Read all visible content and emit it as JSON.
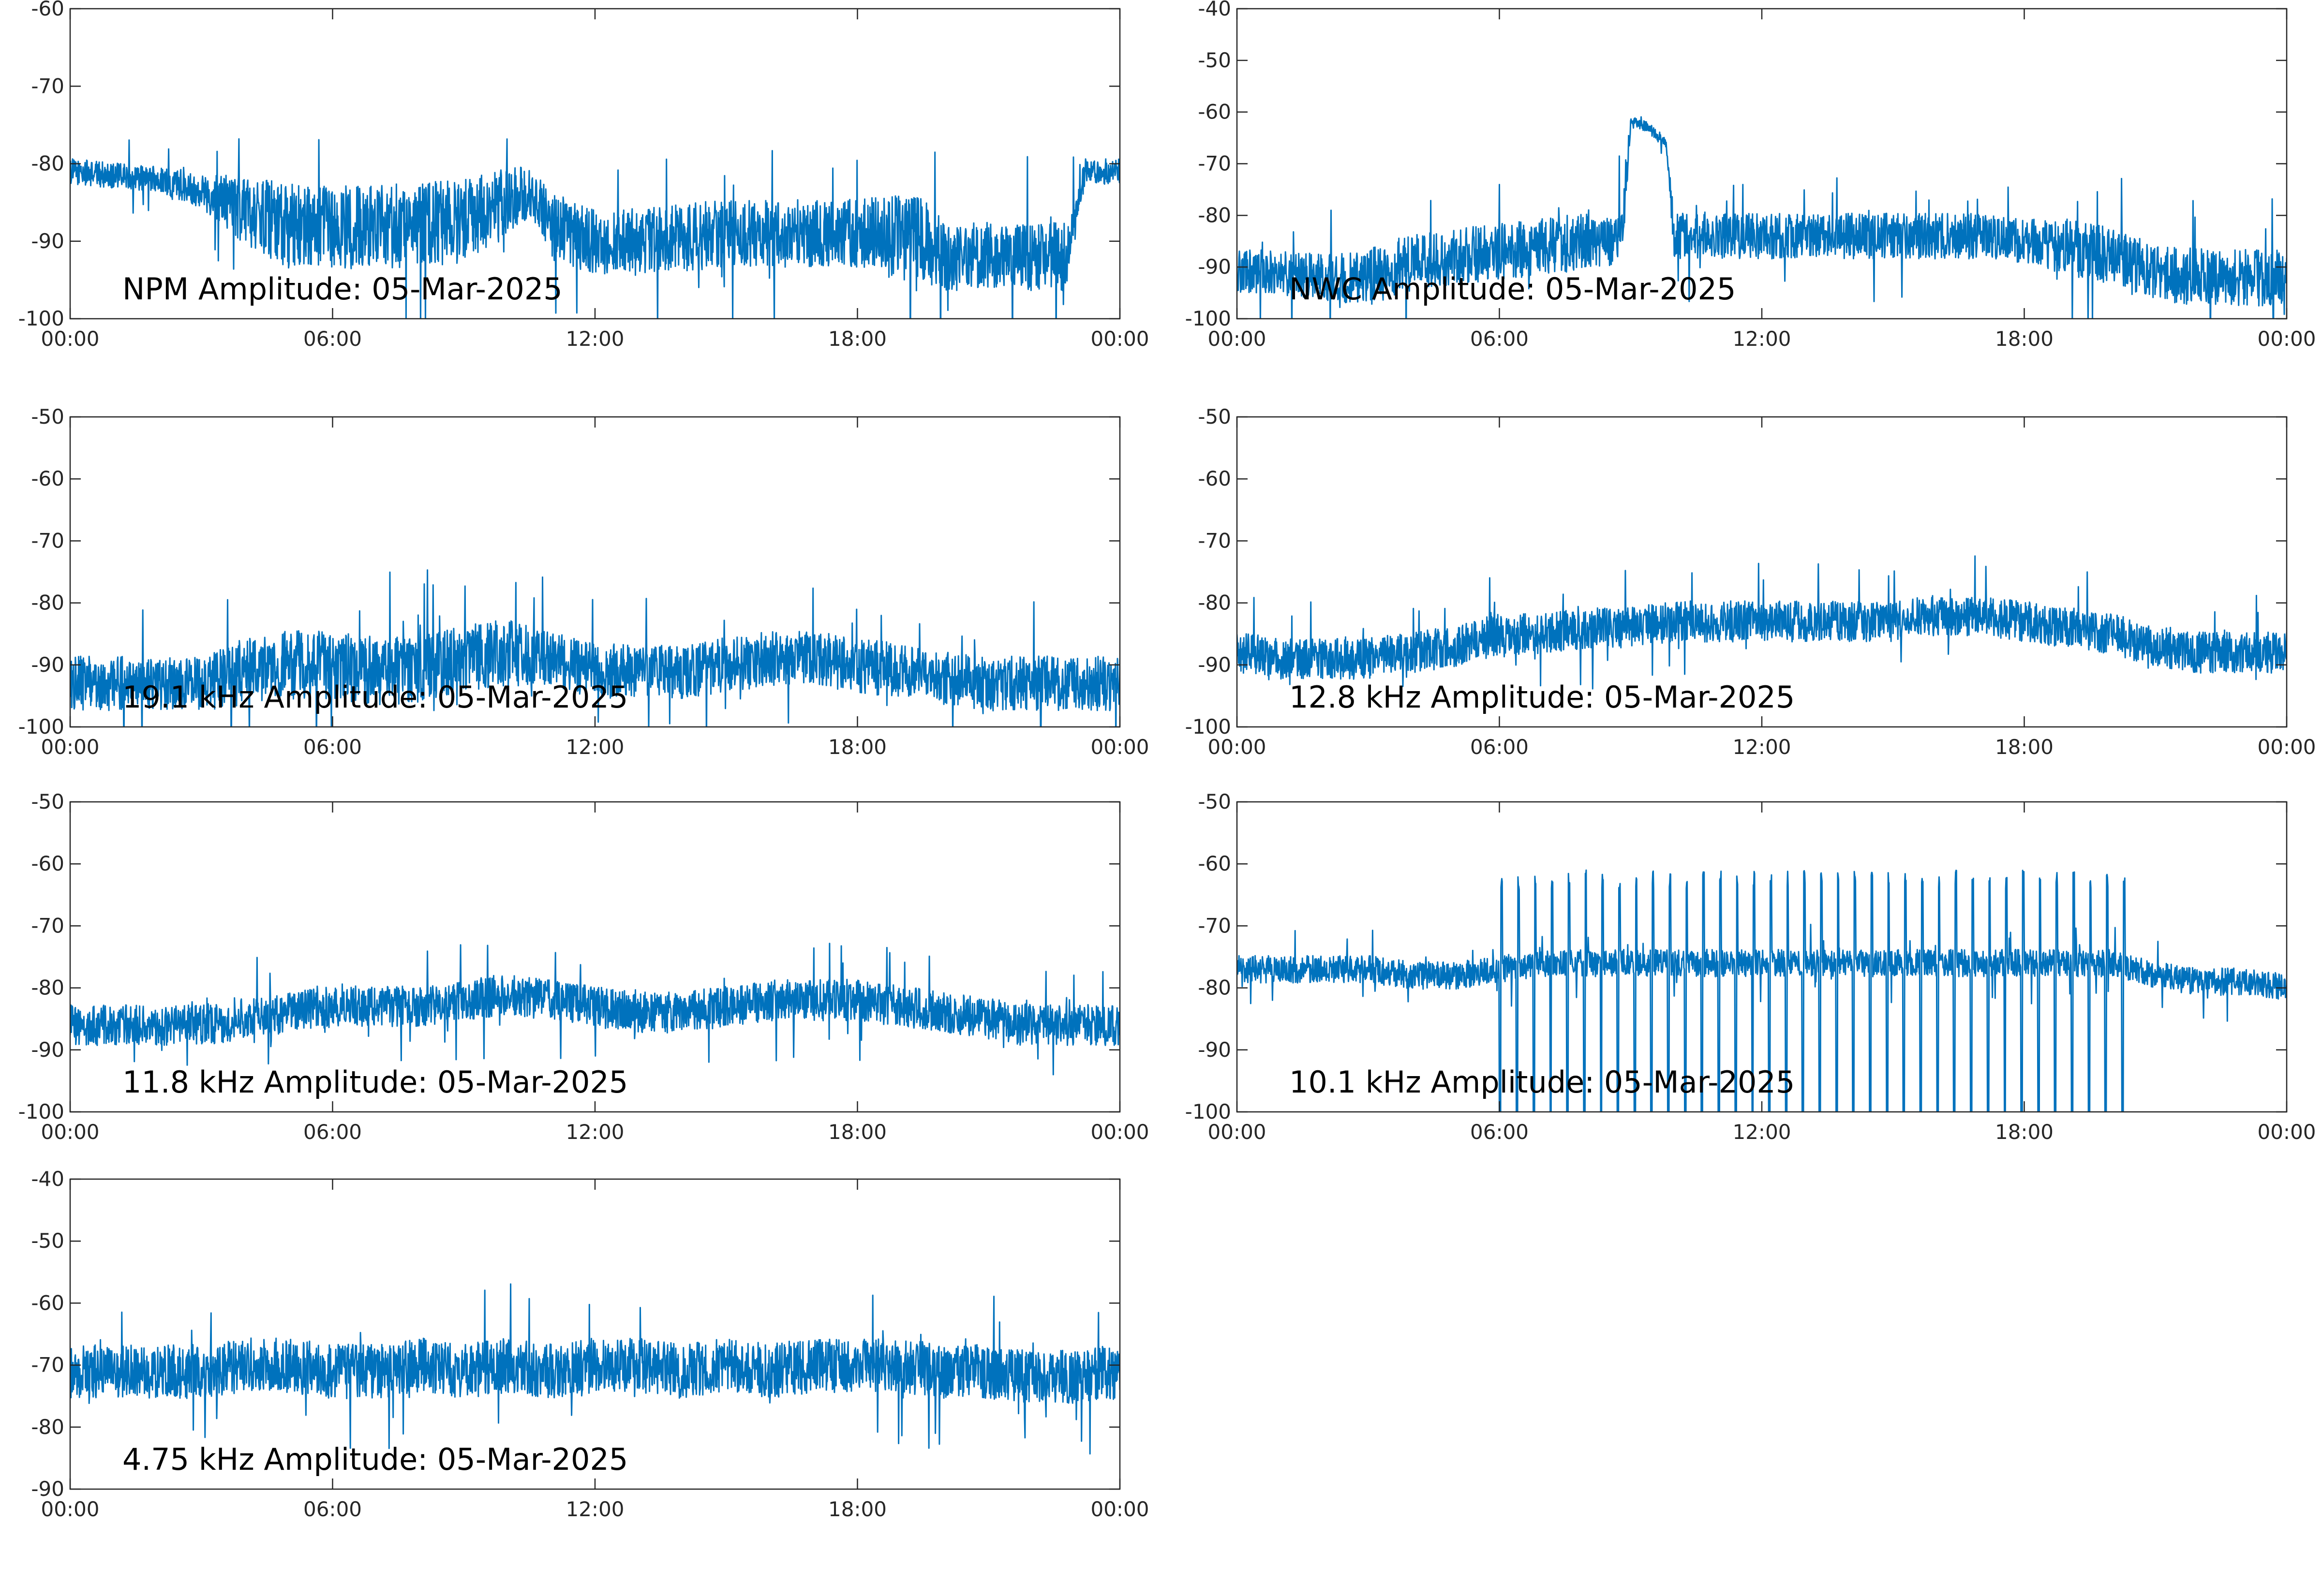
{
  "colors": {
    "line": "#0072bd",
    "axes": "#262626",
    "background": "#ffffff"
  },
  "chart_data": [
    {
      "type": "line",
      "title": "NPM Amplitude: 05-Mar-2025",
      "ylim": [
        -100,
        -60
      ],
      "yticks": [
        "-60",
        "-70",
        "-80",
        "-90",
        "-100"
      ],
      "xticks": [
        "00:00",
        "06:00",
        "12:00",
        "18:00",
        "00:00"
      ],
      "x_hours": [
        0,
        1,
        2,
        3,
        4,
        5,
        6,
        7,
        8,
        9,
        10,
        10.5,
        11,
        12,
        13,
        14,
        15,
        16,
        17,
        18,
        19,
        19.5,
        20,
        21,
        22,
        22.8,
        23.2,
        24
      ],
      "y": [
        -81,
        -81.5,
        -82,
        -83.5,
        -86,
        -88,
        -88.5,
        -88,
        -88,
        -87.5,
        -85,
        -83.5,
        -88,
        -90,
        -90,
        -89.5,
        -89,
        -89,
        -89,
        -89,
        -89.5,
        -90,
        -92,
        -92,
        -92,
        -92,
        -81,
        -81
      ],
      "spread": [
        1.5,
        1.5,
        1.5,
        2,
        4,
        5,
        5,
        5,
        5,
        5,
        4,
        3,
        4,
        4,
        4,
        4,
        4,
        4,
        4,
        4,
        5,
        5,
        4,
        4,
        4,
        4,
        1.5,
        1.5
      ]
    },
    {
      "type": "line",
      "title": "NWC Amplitude: 05-Mar-2025",
      "ylim": [
        -100,
        -40
      ],
      "yticks": [
        "-40",
        "-50",
        "-60",
        "-70",
        "-80",
        "-90",
        "-100"
      ],
      "xticks": [
        "00:00",
        "06:00",
        "12:00",
        "18:00",
        "00:00"
      ],
      "x_hours": [
        0,
        1,
        2,
        3,
        4,
        5,
        6,
        7,
        8,
        8.8,
        9.0,
        9.4,
        9.8,
        10.0,
        11,
        12,
        13,
        14,
        15,
        16,
        17,
        18,
        19,
        20,
        21,
        22,
        23,
        24
      ],
      "y": [
        -91,
        -91,
        -92,
        -92,
        -89,
        -88,
        -87,
        -86,
        -85,
        -85,
        -62,
        -63,
        -66,
        -84,
        -84,
        -84,
        -84,
        -84,
        -84,
        -84,
        -84,
        -85,
        -86,
        -88,
        -91,
        -92,
        -92,
        -92
      ],
      "spread": [
        4,
        4,
        4,
        5,
        5,
        5,
        5,
        5,
        5,
        5,
        1,
        1,
        1,
        4,
        4,
        4,
        4,
        4,
        4,
        4,
        4,
        4,
        5,
        5,
        5,
        5,
        5,
        5
      ]
    },
    {
      "type": "line",
      "title": "19.1 kHz Amplitude: 05-Mar-2025",
      "ylim": [
        -100,
        -50
      ],
      "yticks": [
        "-50",
        "-60",
        "-70",
        "-80",
        "-90",
        "-100"
      ],
      "xticks": [
        "00:00",
        "06:00",
        "12:00",
        "18:00",
        "00:00"
      ],
      "x_hours": [
        0,
        1,
        2,
        3,
        4,
        5,
        6,
        7,
        8,
        9,
        10,
        11,
        12,
        13,
        14,
        15,
        16,
        17,
        18,
        19,
        20,
        21,
        22,
        23,
        24
      ],
      "y": [
        -93,
        -93,
        -93,
        -93,
        -91,
        -90,
        -90,
        -91,
        -91,
        -89,
        -88,
        -89,
        -91,
        -91,
        -91,
        -90,
        -89,
        -89,
        -90,
        -91,
        -92,
        -93,
        -93,
        -93,
        -93
      ],
      "spread": [
        4,
        4,
        4,
        4,
        5,
        5,
        5,
        5,
        5,
        5,
        5,
        4,
        4,
        4,
        4,
        4,
        4,
        4,
        4,
        4,
        4,
        4,
        4,
        4,
        4
      ]
    },
    {
      "type": "line",
      "title": "12.8 kHz Amplitude: 05-Mar-2025",
      "ylim": [
        -100,
        -50
      ],
      "yticks": [
        "-50",
        "-60",
        "-70",
        "-80",
        "-90",
        "-100"
      ],
      "xticks": [
        "00:00",
        "06:00",
        "12:00",
        "18:00",
        "00:00"
      ],
      "x_hours": [
        0,
        1,
        2,
        3,
        4,
        5,
        6,
        7,
        8,
        9,
        10,
        11,
        12,
        13,
        14,
        15,
        16,
        17,
        18,
        19,
        20,
        21,
        22,
        23,
        24
      ],
      "y": [
        -88,
        -89,
        -89,
        -89,
        -88,
        -87,
        -85,
        -85,
        -84,
        -84,
        -83,
        -83,
        -83,
        -83,
        -83,
        -83,
        -82,
        -82,
        -83,
        -84,
        -85,
        -87,
        -88,
        -88,
        -88
      ],
      "spread": [
        3,
        3,
        3,
        3,
        3,
        3,
        3,
        3,
        3,
        3,
        3,
        3,
        3,
        3,
        3,
        3,
        3,
        3,
        3,
        3,
        3,
        3,
        3,
        3,
        3
      ]
    },
    {
      "type": "line",
      "title": "11.8 kHz Amplitude: 05-Mar-2025",
      "ylim": [
        -100,
        -50
      ],
      "yticks": [
        "-50",
        "-60",
        "-70",
        "-80",
        "-90",
        "-100"
      ],
      "xticks": [
        "00:00",
        "06:00",
        "12:00",
        "18:00",
        "00:00"
      ],
      "x_hours": [
        0,
        1,
        2,
        3,
        4,
        5,
        6,
        7,
        8,
        9,
        10,
        11,
        12,
        13,
        14,
        15,
        16,
        17,
        18,
        19,
        20,
        21,
        22,
        23,
        24
      ],
      "y": [
        -86,
        -86,
        -86,
        -86,
        -85,
        -84,
        -83,
        -83,
        -83,
        -82,
        -81,
        -82,
        -83,
        -84,
        -84,
        -83,
        -82,
        -82,
        -82,
        -83,
        -84,
        -85,
        -86,
        -86,
        -86
      ],
      "spread": [
        3,
        3,
        3,
        3,
        3,
        3,
        3,
        3,
        3,
        3,
        3,
        3,
        3,
        3,
        3,
        3,
        3,
        3,
        3,
        3,
        3,
        3,
        3,
        3,
        3
      ]
    },
    {
      "type": "line",
      "title": "10.1 kHz Amplitude: 05-Mar-2025",
      "ylim": [
        -100,
        -50
      ],
      "yticks": [
        "-50",
        "-60",
        "-70",
        "-80",
        "-90",
        "-100"
      ],
      "xticks": [
        "00:00",
        "06:00",
        "12:00",
        "18:00",
        "00:00"
      ],
      "x_hours": [
        0,
        1,
        2,
        3,
        4,
        5,
        6,
        7,
        8,
        9,
        10,
        11,
        12,
        13,
        14,
        15,
        16,
        17,
        18,
        19,
        20,
        20.5,
        21,
        22,
        23,
        24
      ],
      "y": [
        -77,
        -77,
        -77,
        -77,
        -78,
        -78,
        -77,
        -76,
        -76,
        -76,
        -76,
        -76,
        -76,
        -76,
        -76,
        -76,
        -76,
        -76,
        -76,
        -76,
        -76,
        -77,
        -78,
        -79,
        -79,
        -80
      ],
      "spread": [
        2,
        2,
        2,
        2,
        2,
        2,
        2,
        2,
        2,
        2,
        2,
        2,
        2,
        2,
        2,
        2,
        2,
        2,
        2,
        2,
        2,
        2,
        2,
        2,
        2,
        2
      ],
      "fade_range_hours": [
        6,
        20.6
      ]
    },
    {
      "type": "line",
      "title": "4.75 kHz Amplitude: 05-Mar-2025",
      "ylim": [
        -90,
        -40
      ],
      "yticks": [
        "-40",
        "-50",
        "-60",
        "-70",
        "-80",
        "-90"
      ],
      "xticks": [
        "00:00",
        "06:00",
        "12:00",
        "18:00",
        "00:00"
      ],
      "x_hours": [
        0,
        1,
        2,
        3,
        4,
        5,
        6,
        7,
        8,
        9,
        10,
        11,
        12,
        13,
        14,
        15,
        16,
        17,
        18,
        19,
        20,
        21,
        22,
        23,
        24
      ],
      "y": [
        -71,
        -71,
        -71,
        -71,
        -70,
        -70,
        -71,
        -71,
        -70,
        -71,
        -70,
        -71,
        -70,
        -70,
        -71,
        -70,
        -71,
        -70,
        -70,
        -70,
        -71,
        -71,
        -72,
        -72,
        -71
      ],
      "spread": [
        4,
        4,
        4,
        4,
        4,
        4,
        4,
        4,
        4,
        4,
        4,
        4,
        4,
        4,
        4,
        4,
        4,
        4,
        4,
        4,
        4,
        4,
        4,
        4,
        4
      ]
    }
  ]
}
